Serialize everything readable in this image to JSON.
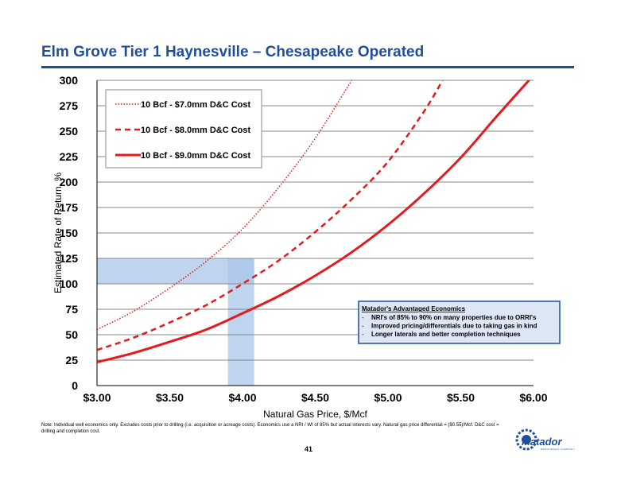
{
  "page": {
    "title": "Elm Grove Tier 1 Haynesville – Chesapeake Operated",
    "note": "Note: Individual well economics only. Excludes costs prior to drilling (i.e. acquisition or acreage costs). Economics use a NRI / WI of 85% but actual interests vary. Natural gas price differential = ($0.55)/Mcf. D&C cost = drilling and completion cost.",
    "page_number": "41",
    "logo_text": "Matador",
    "logo_subtext": "RESOURCES COMPANY"
  },
  "colors": {
    "brand_blue": "#1f4e9a",
    "series_red": "#e41a1c",
    "highlight_blue": "#a9c6e8"
  },
  "chart_data": {
    "type": "line",
    "title": "",
    "xlabel": "Natural Gas Price, $/Mcf",
    "ylabel": "Estimated Rate of Return, %",
    "xlim": [
      3.0,
      6.0
    ],
    "ylim": [
      0,
      300
    ],
    "x_ticks": [
      3.0,
      3.5,
      4.0,
      4.5,
      5.0,
      5.5,
      6.0
    ],
    "x_tick_labels": [
      "$3.00",
      "$3.50",
      "$4.00",
      "$4.50",
      "$5.00",
      "$5.50",
      "$6.00"
    ],
    "y_ticks": [
      0,
      25,
      50,
      75,
      100,
      125,
      150,
      175,
      200,
      225,
      250,
      275,
      300
    ],
    "y_tick_labels": [
      "0",
      "25",
      "50",
      "75",
      "100",
      "125",
      "150",
      "175",
      "200",
      "225",
      "250",
      "275",
      "300"
    ],
    "grid": true,
    "legend_position": "top-left",
    "series": [
      {
        "name": "10 Bcf - $7.0mm D&C Cost",
        "style": "dotted",
        "x": [
          3.0,
          3.25,
          3.5,
          3.75,
          4.0,
          4.25,
          4.5,
          4.75
        ],
        "y": [
          55,
          73,
          96,
          122,
          154,
          195,
          243,
          300
        ]
      },
      {
        "name": "10 Bcf - $8.0mm D&C Cost",
        "style": "dashed",
        "x": [
          3.0,
          3.25,
          3.5,
          3.75,
          4.0,
          4.25,
          4.5,
          4.75,
          5.0,
          5.25,
          5.375
        ],
        "y": [
          35,
          47,
          62,
          79,
          100,
          123,
          151,
          183,
          220,
          270,
          300
        ]
      },
      {
        "name": "10 Bcf - $9.0mm D&C Cost",
        "style": "solid",
        "x": [
          3.0,
          3.25,
          3.5,
          3.75,
          4.0,
          4.25,
          4.5,
          4.75,
          5.0,
          5.25,
          5.5,
          5.75,
          6.0
        ],
        "y": [
          23,
          32,
          43,
          55,
          71,
          88,
          108,
          131,
          158,
          189,
          224,
          265,
          305
        ]
      }
    ],
    "highlight_regions": [
      {
        "x_range": [
          3.0,
          4.08
        ],
        "y_range": [
          100,
          125
        ]
      },
      {
        "x_range": [
          3.9,
          4.08
        ],
        "y_range": [
          0,
          125
        ]
      }
    ],
    "annotation_box": {
      "heading": "Matador's Advantaged Economics",
      "bullets": [
        "NRI's of 85% to 90% on many properties due to ORRI's",
        "Improved pricing/differentials due to taking gas in kind",
        "Longer laterals and better completion techniques"
      ]
    }
  }
}
